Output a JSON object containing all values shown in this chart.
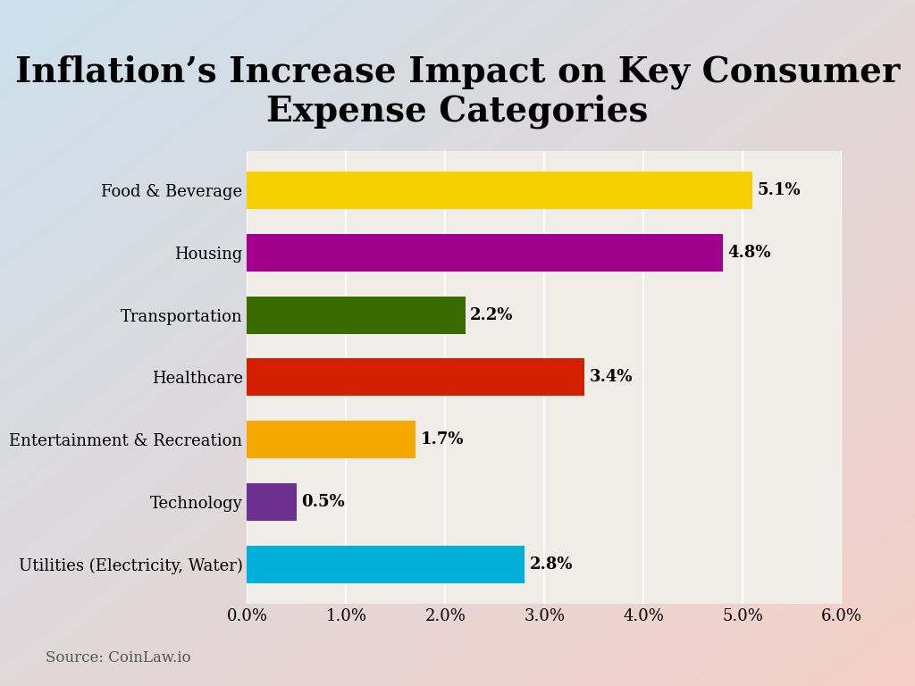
{
  "title": "Inflation’s Increase Impact on Key Consumer\nExpense Categories",
  "categories": [
    "Food & Beverage",
    "Housing",
    "Transportation",
    "Healthcare",
    "Entertainment & Recreation",
    "Technology",
    "Utilities (Electricity, Water)"
  ],
  "values": [
    5.1,
    4.8,
    2.2,
    3.4,
    1.7,
    0.5,
    2.8
  ],
  "bar_colors": [
    "#F5D000",
    "#A0008C",
    "#3A6B00",
    "#D42000",
    "#F5A800",
    "#6B3090",
    "#00B0D8"
  ],
  "xlim": [
    0,
    6.0
  ],
  "xtick_values": [
    0.0,
    1.0,
    2.0,
    3.0,
    4.0,
    5.0,
    6.0
  ],
  "xtick_labels": [
    "0.0%",
    "1.0%",
    "2.0%",
    "3.0%",
    "4.0%",
    "5.0%",
    "6.0%"
  ],
  "source_text": "Source: CoinLaw.io",
  "plot_bg_color": "#f0ede8",
  "title_fontsize": 28,
  "label_fontsize": 13,
  "value_fontsize": 13,
  "source_fontsize": 12
}
